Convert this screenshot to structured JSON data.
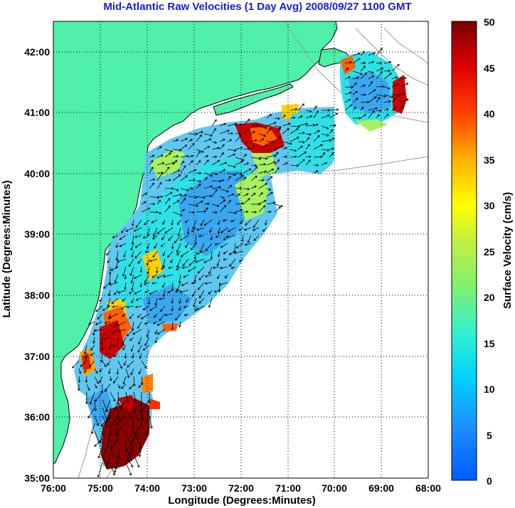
{
  "title": "Mid-Atlantic Raw Velocities (1 Day Avg) 2008/09/27 1100 GMT",
  "xlabel": "Longitude (Degrees:Minutes)",
  "ylabel": "Latitude (Degrees:Minutes)",
  "colorbar_label": "Surface Velocity (cm/s)",
  "x_ticks": [
    "76:00",
    "75:00",
    "74:00",
    "73:00",
    "72:00",
    "71:00",
    "70:00",
    "69:00",
    "68:00"
  ],
  "y_ticks": [
    "42:00",
    "41:00",
    "40:00",
    "39:00",
    "38:00",
    "37:00",
    "36:00",
    "35:00"
  ],
  "colorbar_ticks": [
    "50",
    "45",
    "40",
    "35",
    "30",
    "25",
    "20",
    "15",
    "10",
    "5",
    "0"
  ],
  "colors": {
    "land": "#4ff0a8",
    "ocean": "#ffffff",
    "title": "#1a1adc",
    "grid": "#000000",
    "bathymetry": "#9a9a9a"
  },
  "map": {
    "lon_range": [
      -76,
      -68
    ],
    "lat_range": [
      35,
      42.5
    ],
    "colorbar_range": [
      0,
      50
    ],
    "colormap": "jet"
  }
}
